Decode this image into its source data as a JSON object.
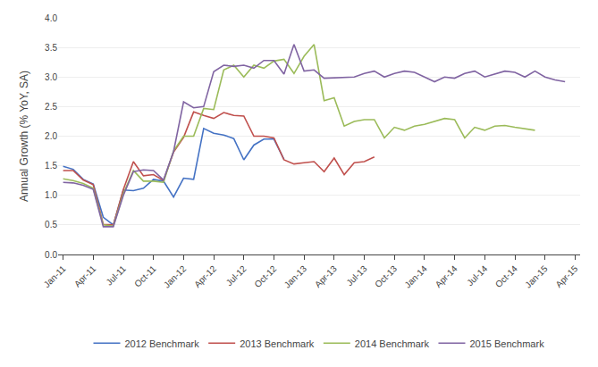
{
  "chart_data": {
    "type": "line",
    "ylabel": "Annual Growth (% YoY, SA)",
    "categories": [
      "Jan-11",
      null,
      null,
      "Apr-11",
      null,
      null,
      "Jul-11",
      null,
      null,
      "Oct-11",
      null,
      null,
      "Jan-12",
      null,
      null,
      "Apr-12",
      null,
      null,
      "Jul-12",
      null,
      null,
      "Oct-12",
      null,
      null,
      "Jan-13",
      null,
      null,
      "Apr-13",
      null,
      null,
      "Jul-13",
      null,
      null,
      "Oct-13",
      null,
      null,
      "Jan-14",
      null,
      null,
      "Apr-14",
      null,
      null,
      "Jul-14",
      null,
      null,
      "Oct-14",
      null,
      null,
      "Jan-15",
      null,
      null,
      "Apr-15"
    ],
    "ylim": [
      0.0,
      4.0
    ],
    "yticks": [
      {
        "value": 0.0,
        "label": "0.0"
      },
      0.5,
      {
        "value": 1.0,
        "label": "1.0"
      },
      1.5,
      {
        "value": 2.0,
        "label": "2.0"
      },
      2.5,
      {
        "value": 3.0,
        "label": "3.0"
      },
      3.5,
      {
        "value": 4.0,
        "label": "4.0"
      }
    ],
    "grid": true,
    "legend": "bottom",
    "series": [
      {
        "name": "2012 Benchmark",
        "color": "#4472c4",
        "values": [
          1.49,
          1.44,
          1.27,
          1.19,
          0.63,
          0.5,
          1.09,
          1.08,
          1.12,
          1.27,
          1.24,
          0.97,
          1.29,
          1.27,
          2.13,
          2.05,
          2.02,
          1.96,
          1.6,
          1.85,
          1.95,
          1.95,
          1.61,
          null,
          null,
          null,
          null,
          null,
          null,
          null,
          null,
          null,
          null,
          null,
          null,
          null,
          null,
          null,
          null,
          null,
          null,
          null,
          null,
          null,
          null,
          null,
          null,
          null,
          null,
          null,
          null,
          null
        ]
      },
      {
        "name": "2013 Benchmark",
        "color": "#c0504d",
        "values": [
          1.42,
          1.42,
          1.26,
          1.18,
          0.51,
          0.5,
          1.1,
          1.57,
          1.33,
          1.35,
          1.25,
          1.73,
          1.98,
          2.41,
          2.35,
          2.3,
          2.4,
          2.35,
          2.34,
          2.0,
          2.0,
          1.97,
          1.6,
          1.53,
          1.55,
          1.57,
          1.4,
          1.63,
          1.35,
          1.55,
          1.57,
          1.65,
          null,
          null,
          null,
          null,
          null,
          null,
          null,
          null,
          null,
          null,
          null,
          null,
          null,
          null,
          null,
          null,
          null,
          null,
          null,
          null
        ]
      },
      {
        "name": "2014 Benchmark",
        "color": "#9bbb59",
        "values": [
          1.28,
          1.25,
          1.2,
          1.12,
          0.5,
          0.48,
          1.03,
          1.42,
          1.24,
          1.24,
          1.22,
          1.75,
          2.0,
          2.0,
          2.47,
          2.45,
          3.12,
          3.2,
          3.0,
          3.2,
          3.15,
          3.27,
          3.3,
          3.06,
          3.35,
          3.55,
          2.6,
          2.65,
          2.17,
          2.25,
          2.28,
          2.28,
          1.97,
          2.15,
          2.1,
          2.17,
          2.2,
          2.25,
          2.3,
          2.28,
          1.97,
          2.15,
          2.1,
          2.17,
          2.18,
          2.15,
          2.12,
          2.1,
          null,
          null,
          null,
          null
        ]
      },
      {
        "name": "2015 Benchmark",
        "color": "#8064a2",
        "values": [
          1.22,
          1.21,
          1.17,
          1.1,
          0.47,
          0.47,
          1.0,
          1.4,
          1.43,
          1.42,
          1.26,
          1.74,
          2.58,
          2.48,
          2.5,
          3.09,
          3.2,
          3.18,
          3.2,
          3.15,
          3.28,
          3.28,
          3.05,
          3.55,
          3.1,
          3.12,
          2.98,
          2.99,
          3.0,
          3.0,
          3.06,
          3.1,
          3.0,
          3.06,
          3.1,
          3.08,
          3.0,
          2.92,
          3.0,
          2.98,
          3.06,
          3.1,
          3.0,
          3.05,
          3.1,
          3.08,
          3.0,
          3.1,
          3.0,
          2.95,
          2.92,
          null
        ]
      }
    ]
  }
}
